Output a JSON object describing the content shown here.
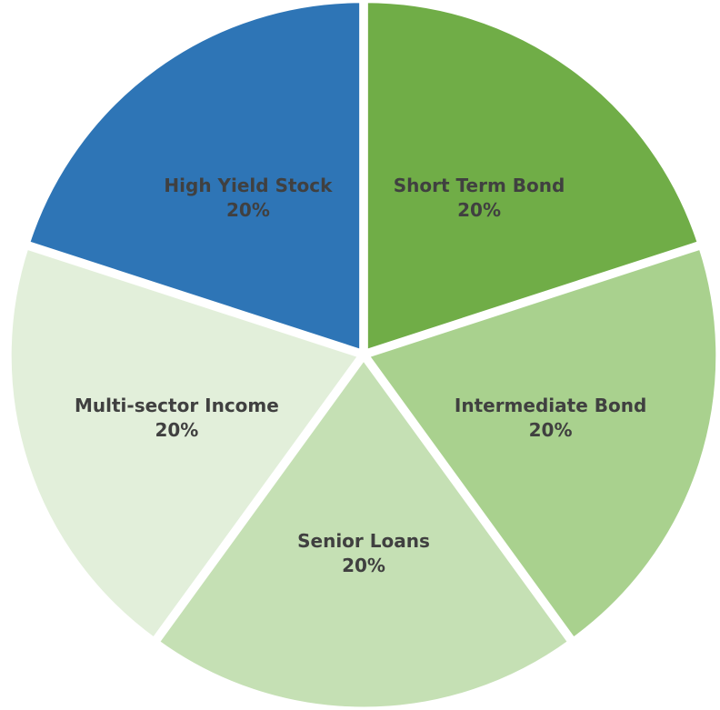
{
  "chart_data": {
    "type": "pie",
    "title": "",
    "slices": [
      {
        "label": "Short Term Bond",
        "value": 20,
        "display": "20%",
        "color": "#70ad47"
      },
      {
        "label": "Intermediate Bond",
        "value": 20,
        "display": "20%",
        "color": "#a9d18e"
      },
      {
        "label": "Senior Loans",
        "value": 20,
        "display": "20%",
        "color": "#c5e0b4"
      },
      {
        "label": "Multi-sector Income",
        "value": 20,
        "display": "20%",
        "color": "#e2efda"
      },
      {
        "label": "High Yield Stock",
        "value": 20,
        "display": "20%",
        "color": "#2e75b6"
      }
    ],
    "start_angle_deg": 0,
    "direction": "clockwise",
    "legend": "none",
    "data_labels": "inside"
  }
}
